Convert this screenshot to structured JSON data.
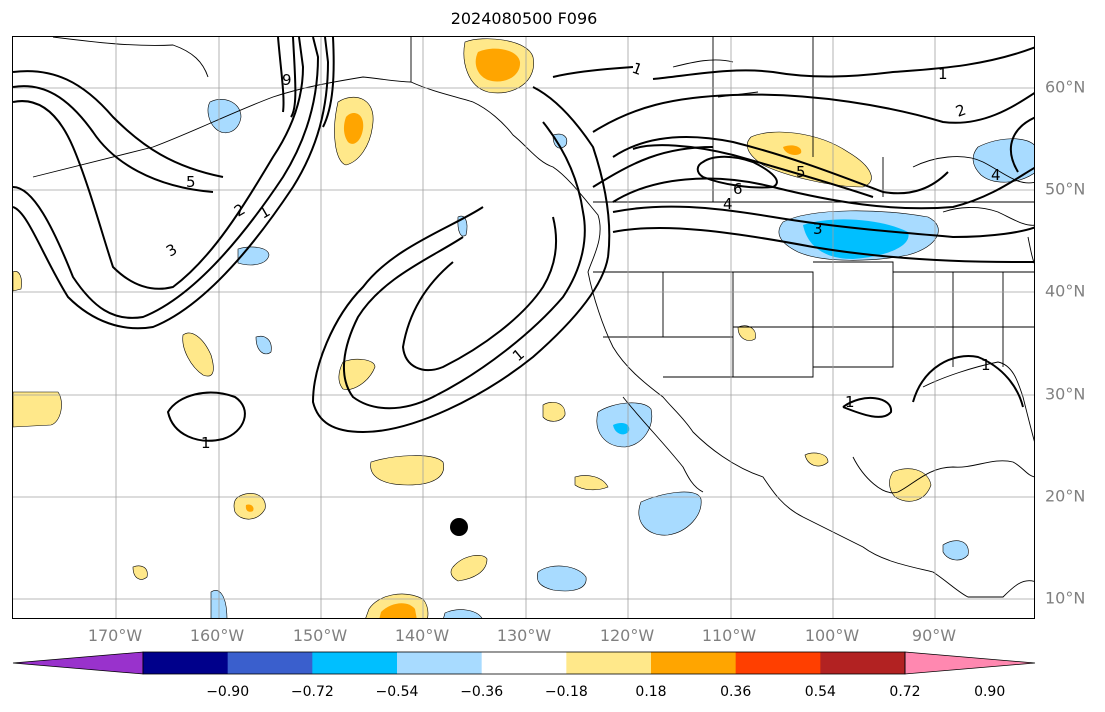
{
  "title": "2024080500 F096",
  "lon_labels": [
    "170°W",
    "160°W",
    "150°W",
    "140°W",
    "130°W",
    "120°W",
    "110°W",
    "100°W",
    "90°W"
  ],
  "lat_labels": [
    "60°N",
    "50°N",
    "40°N",
    "30°N",
    "20°N",
    "10°N"
  ],
  "colorbar": {
    "colors": [
      "#9932cc",
      "#00008b",
      "#3a5fcd",
      "#00bfff",
      "#a8dbff",
      "#ffffff",
      "#ffe88a",
      "#ffa500",
      "#ff3f00",
      "#b22222",
      "#ff88b0"
    ],
    "ticks": [
      "−0.90",
      "−0.72",
      "−0.54",
      "−0.36",
      "−0.18",
      "0.18",
      "0.36",
      "0.54",
      "0.72",
      "0.90"
    ]
  },
  "contour_labels": [
    {
      "text": "1"
    },
    {
      "text": "1"
    },
    {
      "text": "2"
    },
    {
      "text": "4"
    },
    {
      "text": "5"
    },
    {
      "text": "6"
    },
    {
      "text": "4"
    },
    {
      "text": "3"
    },
    {
      "text": "5"
    },
    {
      "text": "2"
    },
    {
      "text": "1"
    },
    {
      "text": "3"
    },
    {
      "text": "1"
    },
    {
      "text": "1"
    },
    {
      "text": "1"
    },
    {
      "text": "1"
    },
    {
      "text": "9"
    }
  ]
}
